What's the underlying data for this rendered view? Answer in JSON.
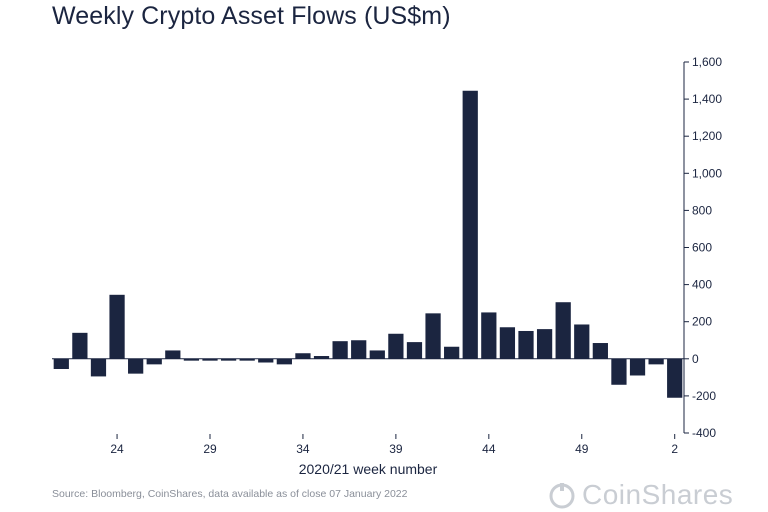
{
  "title": "Weekly Crypto Asset Flows (US$m)",
  "source": "Source: Bloomberg, CoinShares, data available as of close 07 January 2022",
  "logo_text": "CoinShares",
  "chart_data": {
    "type": "bar",
    "title": "Weekly Crypto Asset Flows (US$m)",
    "xlabel": "2020/21 week number",
    "ylabel": "",
    "ylim": [
      -400,
      1600
    ],
    "yticks": [
      -400,
      -200,
      0,
      200,
      400,
      600,
      800,
      1000,
      1200,
      1400,
      1600
    ],
    "ytick_labels": [
      "-400",
      "-200",
      "0",
      "200",
      "400",
      "600",
      "800",
      "1,000",
      "1,200",
      "1,400",
      "1,600"
    ],
    "categories": [
      "21",
      "22",
      "23",
      "24",
      "25",
      "26",
      "27",
      "28",
      "29",
      "30",
      "31",
      "32",
      "33",
      "34",
      "35",
      "36",
      "37",
      "38",
      "39",
      "40",
      "41",
      "42",
      "43",
      "44",
      "45",
      "46",
      "47",
      "48",
      "49",
      "50",
      "51",
      "52",
      "1",
      "2"
    ],
    "xtick_labels": [
      "24",
      "29",
      "34",
      "39",
      "44",
      "49",
      "2"
    ],
    "values": [
      -55,
      140,
      -95,
      345,
      -80,
      -30,
      45,
      -10,
      -10,
      -10,
      -10,
      -20,
      -30,
      30,
      15,
      95,
      100,
      45,
      135,
      90,
      245,
      65,
      1445,
      250,
      170,
      150,
      160,
      305,
      185,
      85,
      -140,
      -90,
      -30,
      -210
    ],
    "bar_color": "#1b2540",
    "grid": false,
    "legend": "none",
    "yaxis_side": "right"
  }
}
